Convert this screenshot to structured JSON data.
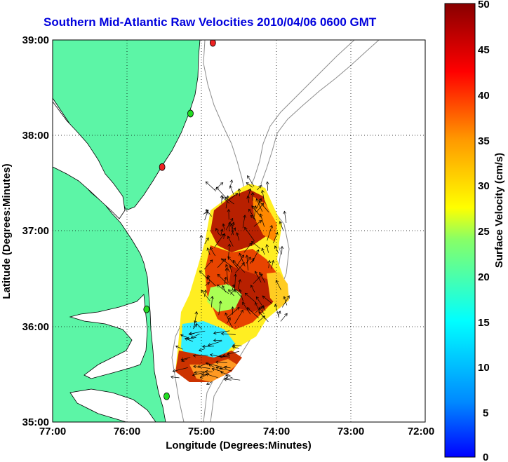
{
  "title": "Southern Mid-Atlantic Raw Velocities 2010/04/06 0600 GMT",
  "xlabel": "Longitude (Degrees:Minutes)",
  "ylabel": "Latitude (Degrees:Minutes)",
  "colorbar_label": "Surface Velocity (cm/s)",
  "x_ticks": [
    "77:00",
    "76:00",
    "75:00",
    "74:00",
    "73:00",
    "72:00"
  ],
  "y_ticks": [
    "39:00",
    "38:00",
    "37:00",
    "36:00",
    "35:00"
  ],
  "colorbar_ticks": [
    "50",
    "45",
    "40",
    "35",
    "30",
    "25",
    "20",
    "15",
    "10",
    "5",
    "0"
  ],
  "colors": {
    "land": "#5cf5a6",
    "coastline": "#000000",
    "bathymetry": "#8c8c8c",
    "title": "#0000dd",
    "site_active": "#22dd22",
    "site_inactive": "#ee2222"
  },
  "map_extent": {
    "lon": [
      -77,
      -72
    ],
    "lat": [
      35,
      39
    ]
  },
  "colorbar_range": [
    0,
    50
  ],
  "sites": [
    {
      "lon": -74.85,
      "lat": 38.97,
      "status": "inactive"
    },
    {
      "lon": -75.15,
      "lat": 38.23,
      "status": "active"
    },
    {
      "lon": -75.53,
      "lat": 37.67,
      "status": "inactive"
    },
    {
      "lon": -75.74,
      "lat": 36.18,
      "status": "active"
    },
    {
      "lon": -75.47,
      "lat": 35.27,
      "status": "active"
    }
  ]
}
